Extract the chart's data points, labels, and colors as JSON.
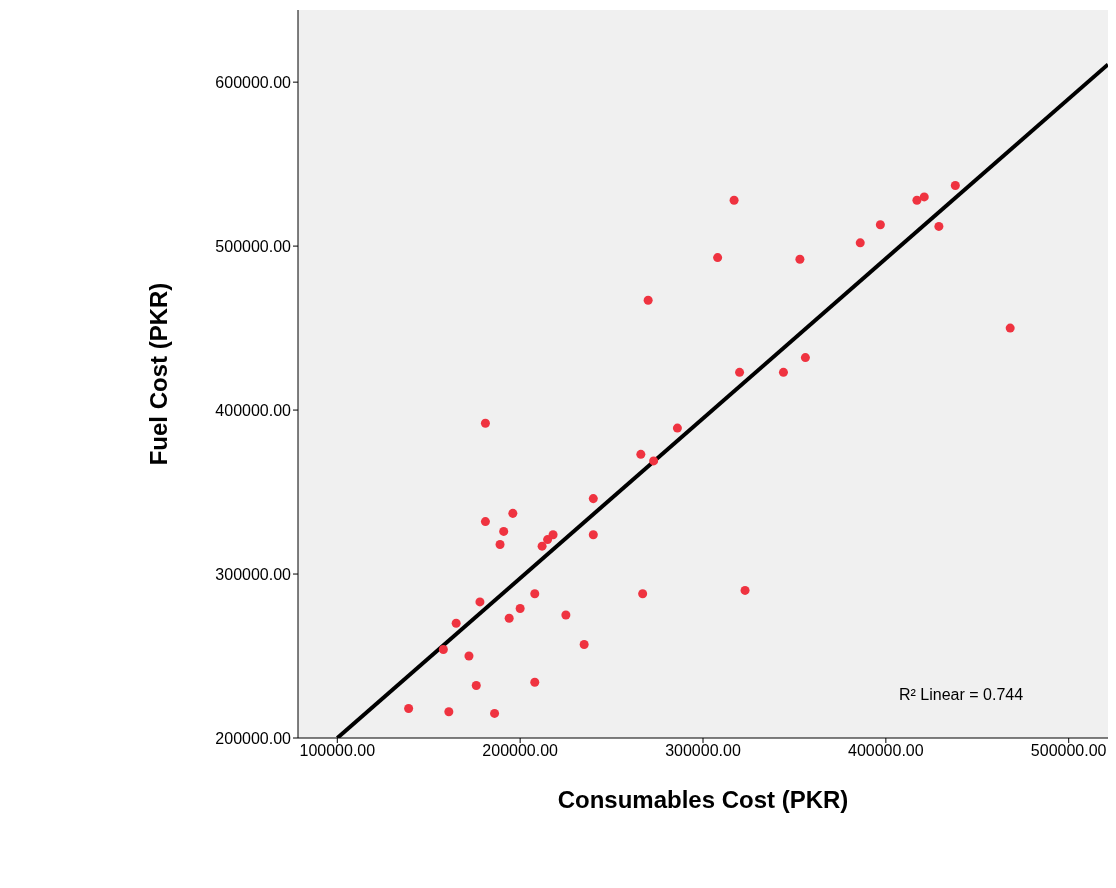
{
  "chart_data": {
    "type": "scatter",
    "xlabel": "Consumables Cost (PKR)",
    "ylabel": "Fuel Cost (PKR)",
    "xlim": [
      78500,
      521500
    ],
    "ylim": [
      200000,
      644000
    ],
    "xticks": [
      {
        "value": 100000,
        "label": "100000.00"
      },
      {
        "value": 200000,
        "label": "200000.00"
      },
      {
        "value": 300000,
        "label": "300000.00"
      },
      {
        "value": 400000,
        "label": "400000.00"
      },
      {
        "value": 500000,
        "label": "500000.00"
      }
    ],
    "yticks": [
      {
        "value": 200000,
        "label": "200000.00"
      },
      {
        "value": 300000,
        "label": "300000.00"
      },
      {
        "value": 400000,
        "label": "400000.00"
      },
      {
        "value": 500000,
        "label": "500000.00"
      },
      {
        "value": 600000,
        "label": "600000.00"
      }
    ],
    "annotations": [
      "R² Linear = 0.744"
    ],
    "series": [
      {
        "marker": "circle",
        "color": "#ef3340",
        "x": [
          139000,
          161000,
          186000,
          158000,
          165000,
          172000,
          176000,
          178000,
          181000,
          181000,
          189000,
          191000,
          194000,
          196000,
          200000,
          208000,
          208000,
          212000,
          215000,
          218000,
          225000,
          235000,
          240000,
          240000,
          266000,
          267000,
          270000,
          273000,
          286000,
          308000,
          317000,
          320000,
          323000,
          344000,
          353000,
          356000,
          386000,
          397000,
          417000,
          421000,
          429000,
          438000,
          468000
        ],
        "values": [
          218000,
          216000,
          215000,
          254000,
          270000,
          250000,
          232000,
          283000,
          332000,
          392000,
          318000,
          326000,
          273000,
          337000,
          279000,
          288000,
          234000,
          317000,
          321000,
          324000,
          275000,
          257000,
          346000,
          324000,
          373000,
          288000,
          467000,
          369000,
          389000,
          493000,
          528000,
          423000,
          290000,
          423000,
          492000,
          432000,
          502000,
          513000,
          528000,
          530000,
          512000,
          537000,
          450000
        ]
      },
      {
        "type": "line",
        "color": "#000000",
        "x": [
          100000,
          521500
        ],
        "values": [
          200000,
          610800
        ]
      }
    ]
  }
}
